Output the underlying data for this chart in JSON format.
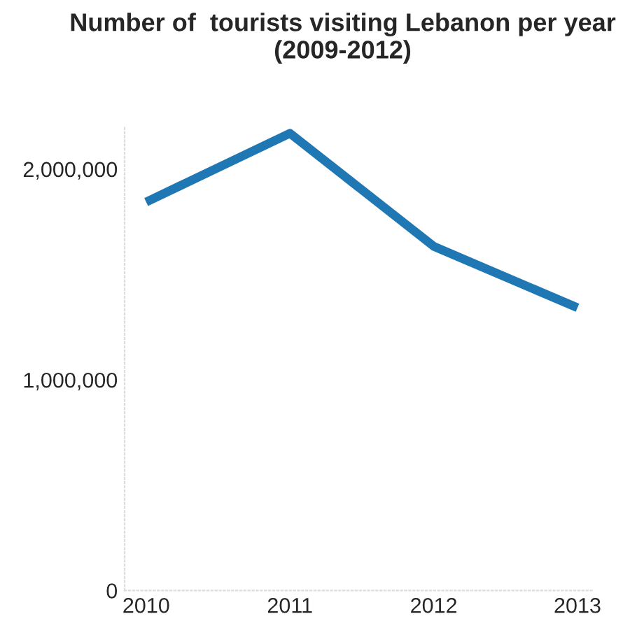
{
  "chart_data": {
    "type": "line",
    "title": "Number of  tourists visiting Lebanon per year\n(2009-2012)",
    "x": [
      2010,
      2011,
      2012,
      2013
    ],
    "series": [
      {
        "color": "#1f77b4",
        "values": [
          1844000,
          2170000,
          1634000,
          1342000
        ]
      }
    ],
    "xlim": [
      2009.85,
      2013.1
    ],
    "xticks": [
      2010,
      2011,
      2012,
      2013
    ],
    "ylim": [
      0,
      2200000
    ],
    "yticks": [
      0,
      {
        "value": 1000000,
        "label": "1,000,000"
      },
      {
        "value": 2000000,
        "label": "2,000,000"
      }
    ],
    "grid": false,
    "marker": "none",
    "line_style": "solid"
  }
}
